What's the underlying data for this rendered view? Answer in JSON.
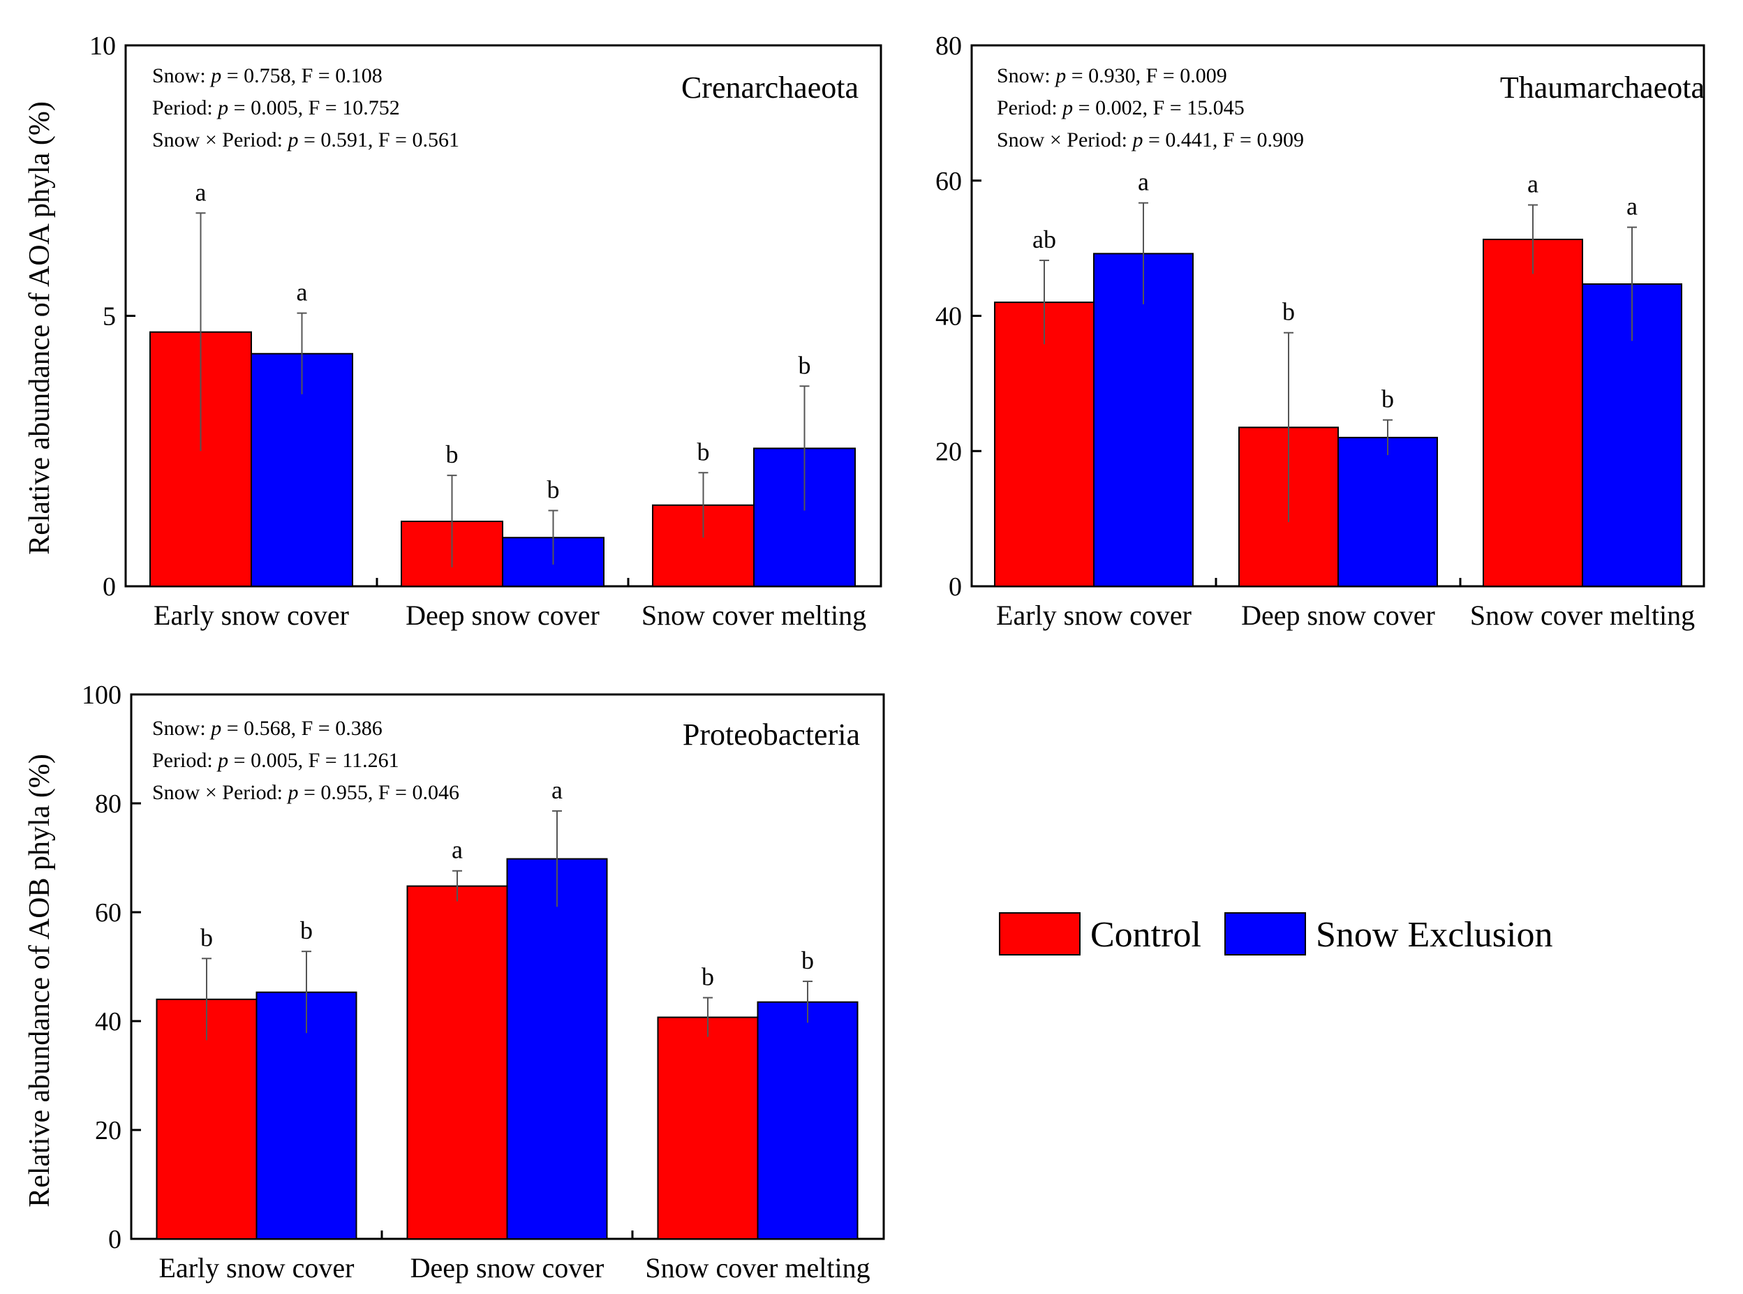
{
  "colors": {
    "control": "#ff0000",
    "snow_exclusion": "#0000ff",
    "axis": "#000000"
  },
  "legend": {
    "items": [
      {
        "label": "Control",
        "color": "#ff0000"
      },
      {
        "label": "Snow Exclusion",
        "color": "#0000ff"
      }
    ]
  },
  "y_labels": {
    "aoa": "Relative abundance of AOA phyla (%)",
    "aob": "Relative abundance of AOB phyla (%)"
  },
  "chart_data": [
    {
      "id": "crenarchaeota",
      "type": "bar",
      "title": "Crenarchaeota",
      "categories": [
        "Early snow cover",
        "Deep snow cover",
        "Snow cover melting"
      ],
      "ylim": [
        0,
        10
      ],
      "yticks": [
        "0",
        "5",
        "10"
      ],
      "stats": [
        "Snow: p = 0.758, F = 0.108",
        "Period: p = 0.005, F = 10.752",
        "Snow × Period: p = 0.591, F = 0.561"
      ],
      "series": [
        {
          "name": "Control",
          "values": [
            4.7,
            1.2,
            1.5
          ],
          "errors": [
            2.2,
            0.85,
            0.6
          ],
          "letters": [
            "a",
            "b",
            "b"
          ]
        },
        {
          "name": "Snow Exclusion",
          "values": [
            4.3,
            0.9,
            2.55
          ],
          "errors": [
            0.75,
            0.5,
            1.15
          ],
          "letters": [
            "a",
            "b",
            "b"
          ]
        }
      ]
    },
    {
      "id": "thaumarchaeota",
      "type": "bar",
      "title": "Thaumarchaeota",
      "categories": [
        "Early snow cover",
        "Deep snow cover",
        "Snow cover melting"
      ],
      "ylim": [
        0,
        80
      ],
      "yticks": [
        "0",
        "20",
        "40",
        "60",
        "80"
      ],
      "stats": [
        "Snow: p = 0.930, F = 0.009",
        "Period: p = 0.002, F = 15.045",
        "Snow × Period: p = 0.441, F = 0.909"
      ],
      "series": [
        {
          "name": "Control",
          "values": [
            42,
            23.5,
            51.3
          ],
          "errors": [
            6.2,
            14,
            5.1
          ],
          "letters": [
            "ab",
            "b",
            "a"
          ]
        },
        {
          "name": "Snow Exclusion",
          "values": [
            49.2,
            22,
            44.7
          ],
          "errors": [
            7.5,
            2.6,
            8.4
          ],
          "letters": [
            "a",
            "b",
            "a"
          ]
        }
      ]
    },
    {
      "id": "proteobacteria",
      "type": "bar",
      "title": "Proteobacteria",
      "categories": [
        "Early snow cover",
        "Deep snow cover",
        "Snow cover melting"
      ],
      "ylim": [
        0,
        100
      ],
      "yticks": [
        "0",
        "20",
        "40",
        "60",
        "80",
        "100"
      ],
      "stats": [
        "Snow: p = 0.568, F = 0.386",
        "Period: p = 0.005, F = 11.261",
        "Snow × Period: p = 0.955, F = 0.046"
      ],
      "series": [
        {
          "name": "Control",
          "values": [
            44,
            64.8,
            40.7
          ],
          "errors": [
            7.5,
            2.8,
            3.6
          ],
          "letters": [
            "b",
            "a",
            "b"
          ]
        },
        {
          "name": "Snow Exclusion",
          "values": [
            45.3,
            69.8,
            43.5
          ],
          "errors": [
            7.5,
            8.8,
            3.8
          ],
          "letters": [
            "b",
            "a",
            "b"
          ]
        }
      ]
    }
  ]
}
